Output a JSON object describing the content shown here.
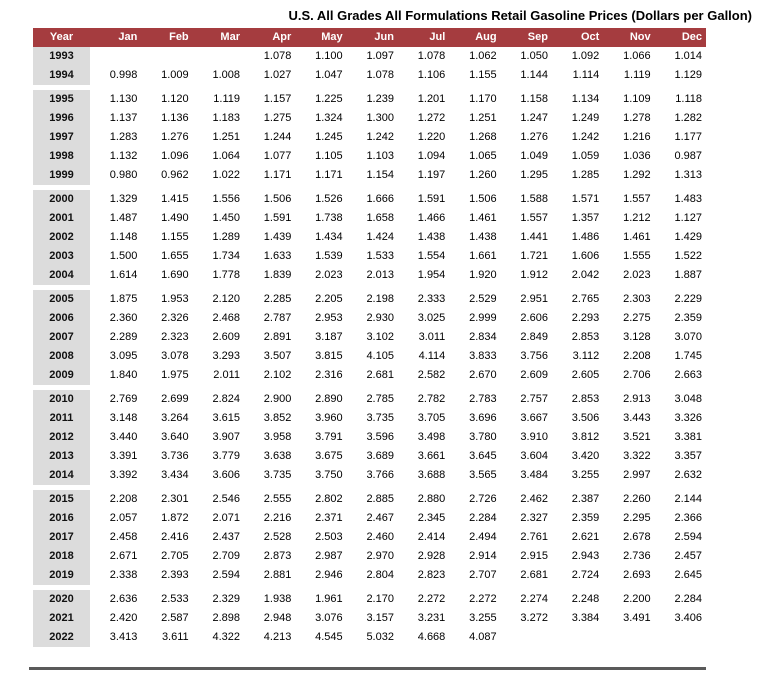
{
  "title": "U.S. All Grades All Formulations Retail Gasoline Prices (Dollars per Gallon)",
  "colors": {
    "header_bg": "#A53C3F",
    "year_col_bg": "#DCDCDC",
    "bottom_rule": "#5A5A5A",
    "text": "#000000"
  },
  "table": {
    "columns": [
      "Year",
      "Jan",
      "Feb",
      "Mar",
      "Apr",
      "May",
      "Jun",
      "Jul",
      "Aug",
      "Sep",
      "Oct",
      "Nov",
      "Dec"
    ],
    "groups": [
      [
        "1993",
        "1994"
      ],
      [
        "1995",
        "1996",
        "1997",
        "1998",
        "1999"
      ],
      [
        "2000",
        "2001",
        "2002",
        "2003",
        "2004"
      ],
      [
        "2005",
        "2006",
        "2007",
        "2008",
        "2009"
      ],
      [
        "2010",
        "2011",
        "2012",
        "2013",
        "2014"
      ],
      [
        "2015",
        "2016",
        "2017",
        "2018",
        "2019"
      ],
      [
        "2020",
        "2021",
        "2022"
      ]
    ]
  },
  "chart_data": {
    "type": "table",
    "title": "U.S. All Grades All Formulations Retail Gasoline Prices (Dollars per Gallon)",
    "unit": "dollars per gallon",
    "categories": [
      "Jan",
      "Feb",
      "Mar",
      "Apr",
      "May",
      "Jun",
      "Jul",
      "Aug",
      "Sep",
      "Oct",
      "Nov",
      "Dec"
    ],
    "series": [
      {
        "name": "1993",
        "values": [
          null,
          null,
          null,
          1.078,
          1.1,
          1.097,
          1.078,
          1.062,
          1.05,
          1.092,
          1.066,
          1.014
        ]
      },
      {
        "name": "1994",
        "values": [
          0.998,
          1.009,
          1.008,
          1.027,
          1.047,
          1.078,
          1.106,
          1.155,
          1.144,
          1.114,
          1.119,
          1.129
        ]
      },
      {
        "name": "1995",
        "values": [
          1.13,
          1.12,
          1.119,
          1.157,
          1.225,
          1.239,
          1.201,
          1.17,
          1.158,
          1.134,
          1.109,
          1.118
        ]
      },
      {
        "name": "1996",
        "values": [
          1.137,
          1.136,
          1.183,
          1.275,
          1.324,
          1.3,
          1.272,
          1.251,
          1.247,
          1.249,
          1.278,
          1.282
        ]
      },
      {
        "name": "1997",
        "values": [
          1.283,
          1.276,
          1.251,
          1.244,
          1.245,
          1.242,
          1.22,
          1.268,
          1.276,
          1.242,
          1.216,
          1.177
        ]
      },
      {
        "name": "1998",
        "values": [
          1.132,
          1.096,
          1.064,
          1.077,
          1.105,
          1.103,
          1.094,
          1.065,
          1.049,
          1.059,
          1.036,
          0.987
        ]
      },
      {
        "name": "1999",
        "values": [
          0.98,
          0.962,
          1.022,
          1.171,
          1.171,
          1.154,
          1.197,
          1.26,
          1.295,
          1.285,
          1.292,
          1.313
        ]
      },
      {
        "name": "2000",
        "values": [
          1.329,
          1.415,
          1.556,
          1.506,
          1.526,
          1.666,
          1.591,
          1.506,
          1.588,
          1.571,
          1.557,
          1.483
        ]
      },
      {
        "name": "2001",
        "values": [
          1.487,
          1.49,
          1.45,
          1.591,
          1.738,
          1.658,
          1.466,
          1.461,
          1.557,
          1.357,
          1.212,
          1.127
        ]
      },
      {
        "name": "2002",
        "values": [
          1.148,
          1.155,
          1.289,
          1.439,
          1.434,
          1.424,
          1.438,
          1.438,
          1.441,
          1.486,
          1.461,
          1.429
        ]
      },
      {
        "name": "2003",
        "values": [
          1.5,
          1.655,
          1.734,
          1.633,
          1.539,
          1.533,
          1.554,
          1.661,
          1.721,
          1.606,
          1.555,
          1.522
        ]
      },
      {
        "name": "2004",
        "values": [
          1.614,
          1.69,
          1.778,
          1.839,
          2.023,
          2.013,
          1.954,
          1.92,
          1.912,
          2.042,
          2.023,
          1.887
        ]
      },
      {
        "name": "2005",
        "values": [
          1.875,
          1.953,
          2.12,
          2.285,
          2.205,
          2.198,
          2.333,
          2.529,
          2.951,
          2.765,
          2.303,
          2.229
        ]
      },
      {
        "name": "2006",
        "values": [
          2.36,
          2.326,
          2.468,
          2.787,
          2.953,
          2.93,
          3.025,
          2.999,
          2.606,
          2.293,
          2.275,
          2.359
        ]
      },
      {
        "name": "2007",
        "values": [
          2.289,
          2.323,
          2.609,
          2.891,
          3.187,
          3.102,
          3.011,
          2.834,
          2.849,
          2.853,
          3.128,
          3.07
        ]
      },
      {
        "name": "2008",
        "values": [
          3.095,
          3.078,
          3.293,
          3.507,
          3.815,
          4.105,
          4.114,
          3.833,
          3.756,
          3.112,
          2.208,
          1.745
        ]
      },
      {
        "name": "2009",
        "values": [
          1.84,
          1.975,
          2.011,
          2.102,
          2.316,
          2.681,
          2.582,
          2.67,
          2.609,
          2.605,
          2.706,
          2.663
        ]
      },
      {
        "name": "2010",
        "values": [
          2.769,
          2.699,
          2.824,
          2.9,
          2.89,
          2.785,
          2.782,
          2.783,
          2.757,
          2.853,
          2.913,
          3.048
        ]
      },
      {
        "name": "2011",
        "values": [
          3.148,
          3.264,
          3.615,
          3.852,
          3.96,
          3.735,
          3.705,
          3.696,
          3.667,
          3.506,
          3.443,
          3.326
        ]
      },
      {
        "name": "2012",
        "values": [
          3.44,
          3.64,
          3.907,
          3.958,
          3.791,
          3.596,
          3.498,
          3.78,
          3.91,
          3.812,
          3.521,
          3.381
        ]
      },
      {
        "name": "2013",
        "values": [
          3.391,
          3.736,
          3.779,
          3.638,
          3.675,
          3.689,
          3.661,
          3.645,
          3.604,
          3.42,
          3.322,
          3.357
        ]
      },
      {
        "name": "2014",
        "values": [
          3.392,
          3.434,
          3.606,
          3.735,
          3.75,
          3.766,
          3.688,
          3.565,
          3.484,
          3.255,
          2.997,
          2.632
        ]
      },
      {
        "name": "2015",
        "values": [
          2.208,
          2.301,
          2.546,
          2.555,
          2.802,
          2.885,
          2.88,
          2.726,
          2.462,
          2.387,
          2.26,
          2.144
        ]
      },
      {
        "name": "2016",
        "values": [
          2.057,
          1.872,
          2.071,
          2.216,
          2.371,
          2.467,
          2.345,
          2.284,
          2.327,
          2.359,
          2.295,
          2.366
        ]
      },
      {
        "name": "2017",
        "values": [
          2.458,
          2.416,
          2.437,
          2.528,
          2.503,
          2.46,
          2.414,
          2.494,
          2.761,
          2.621,
          2.678,
          2.594
        ]
      },
      {
        "name": "2018",
        "values": [
          2.671,
          2.705,
          2.709,
          2.873,
          2.987,
          2.97,
          2.928,
          2.914,
          2.915,
          2.943,
          2.736,
          2.457
        ]
      },
      {
        "name": "2019",
        "values": [
          2.338,
          2.393,
          2.594,
          2.881,
          2.946,
          2.804,
          2.823,
          2.707,
          2.681,
          2.724,
          2.693,
          2.645
        ]
      },
      {
        "name": "2020",
        "values": [
          2.636,
          2.533,
          2.329,
          1.938,
          1.961,
          2.17,
          2.272,
          2.272,
          2.274,
          2.248,
          2.2,
          2.284
        ]
      },
      {
        "name": "2021",
        "values": [
          2.42,
          2.587,
          2.898,
          2.948,
          3.076,
          3.157,
          3.231,
          3.255,
          3.272,
          3.384,
          3.491,
          3.406
        ]
      },
      {
        "name": "2022",
        "values": [
          3.413,
          3.611,
          4.322,
          4.213,
          4.545,
          5.032,
          4.668,
          4.087,
          null,
          null,
          null,
          null
        ]
      }
    ]
  }
}
